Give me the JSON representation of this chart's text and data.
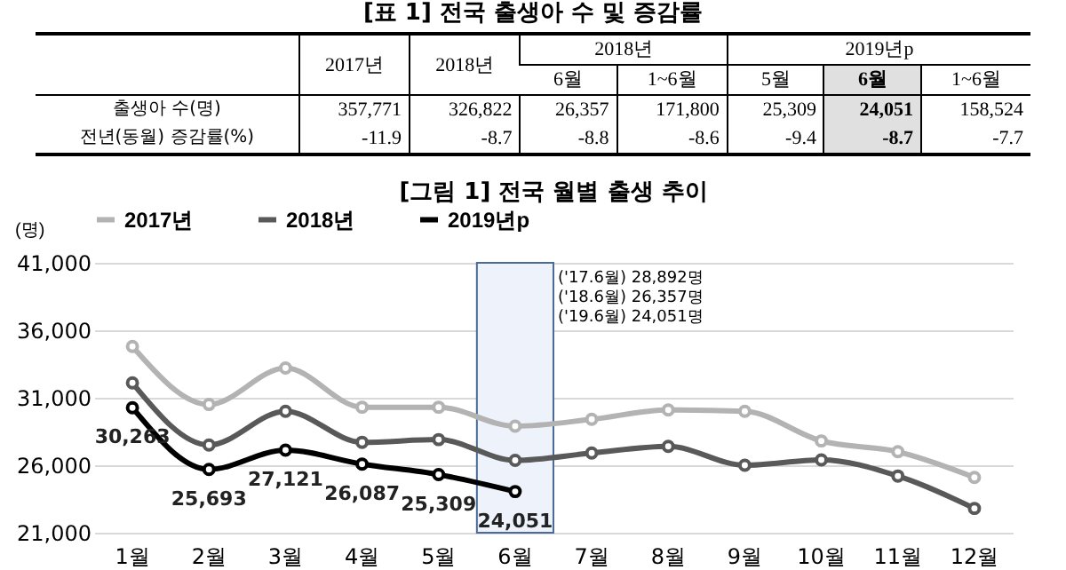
{
  "chart_data": [
    {
      "type": "other",
      "title": "[표 1] 전국 출생아 수 및 증감률",
      "annotations": [
        "2017년",
        "2018년",
        "2018년",
        "2019년p",
        "6월",
        "1~6월",
        "5월",
        "6월",
        "1~6월",
        "출생아 수(명)",
        "357,771",
        "326,822",
        "26,357",
        "171,800",
        "25,309",
        "24,051",
        "158,524",
        "전년(동월) 증감률(%)",
        "-11.9",
        "-8.7",
        "-8.8",
        "-8.6",
        "-9.4",
        "-8.7",
        "-7.7"
      ]
    },
    {
      "type": "line",
      "title": "[그림 1] 전국 월별 출생 추이",
      "ylabel": "(명)",
      "categories": [
        "1월",
        "2월",
        "3월",
        "4월",
        "5월",
        "6월",
        "7월",
        "8월",
        "9월",
        "10월",
        "11월",
        "12월"
      ],
      "series": [
        {
          "name": "2017년",
          "color": "#b3b3b3",
          "values": [
            34800,
            30500,
            33200,
            30300,
            30300,
            28892,
            29400,
            30100,
            30000,
            27800,
            27000,
            25100
          ]
        },
        {
          "name": "2018년",
          "color": "#595959",
          "values": [
            32100,
            27500,
            30000,
            27700,
            27900,
            26357,
            26900,
            27400,
            26000,
            26400,
            25200,
            22800
          ]
        },
        {
          "name": "2019년p",
          "color": "#000000",
          "values": [
            30263,
            25693,
            27121,
            26087,
            25309,
            24051,
            null,
            null,
            null,
            null,
            null,
            null
          ],
          "value_labels": [
            "30,263",
            "25,693",
            "27,121",
            "26,087",
            "25,309",
            "24,051",
            null,
            null,
            null,
            null,
            null,
            null
          ]
        }
      ],
      "ylim": [
        21000,
        41000
      ],
      "yticks": [
        {
          "value": 21000,
          "label": "21,000"
        },
        {
          "value": 26000,
          "label": "26,000"
        },
        {
          "value": 31000,
          "label": "31,000"
        },
        {
          "value": 36000,
          "label": "36,000"
        },
        {
          "value": 41000,
          "label": "41,000"
        }
      ],
      "grid": "y",
      "legend": "top",
      "marker": "circle",
      "line_style": "solid",
      "bands": [
        {
          "axis": "x",
          "from": "6월",
          "to": "6월",
          "color": "#eef2fa"
        }
      ],
      "annotations": [
        "('17.6월)  28,892명",
        "('18.6월)  26,357명",
        "('19.6월)  24,051명"
      ]
    }
  ]
}
